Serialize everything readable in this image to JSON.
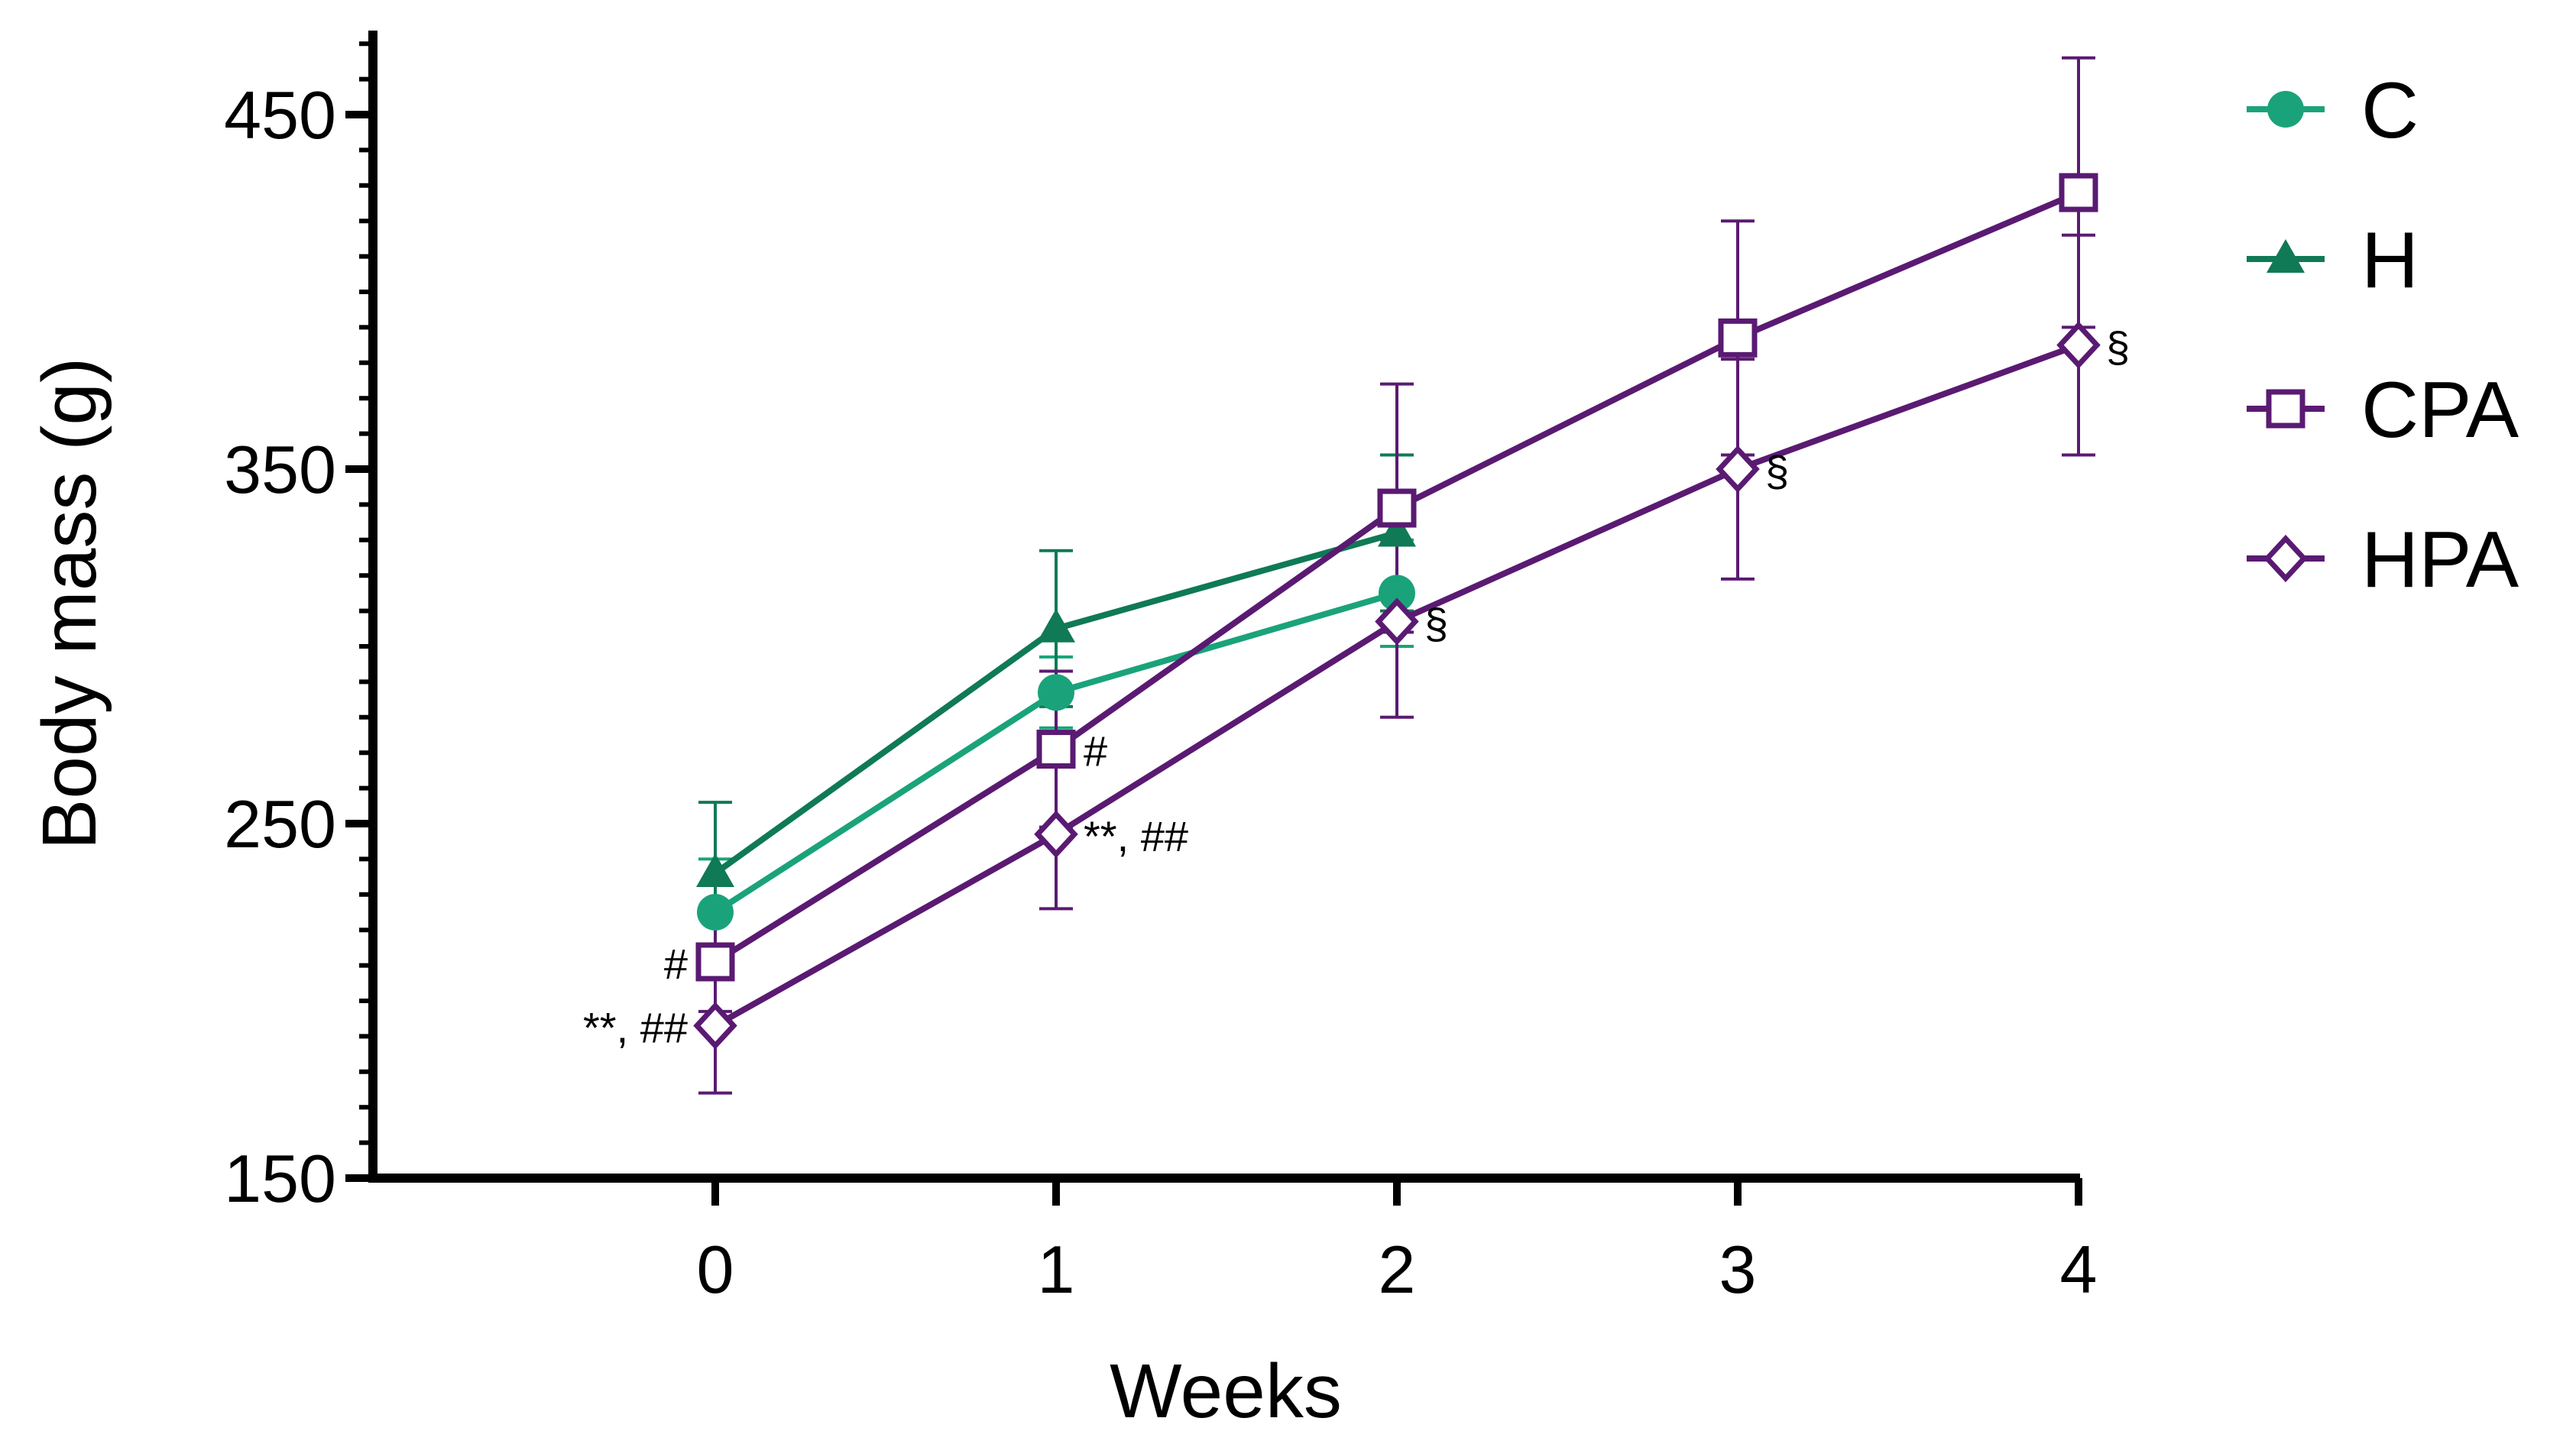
{
  "chart_data": {
    "type": "line",
    "title": "",
    "xlabel": "Weeks",
    "ylabel": "Body mass (g)",
    "x": [
      0,
      1,
      2,
      3,
      4
    ],
    "xlim": [
      -1,
      4
    ],
    "ylim": [
      150,
      470
    ],
    "xticks": [
      "0",
      "1",
      "2",
      "3",
      "4"
    ],
    "yticks": [
      "150",
      "250",
      "350",
      "450"
    ],
    "ytick_values": [
      150,
      250,
      350,
      450
    ],
    "legend_position": "right",
    "series": [
      {
        "name": "C",
        "marker": "filled-circle",
        "color": "#1aa37a",
        "x": [
          0,
          1,
          2
        ],
        "values": [
          225,
          287,
          315
        ],
        "errors": [
          15,
          10,
          15
        ]
      },
      {
        "name": "H",
        "marker": "filled-triangle",
        "color": "#0f7a55",
        "x": [
          0,
          1,
          2
        ],
        "values": [
          236,
          305,
          332
        ],
        "errors": [
          20,
          22,
          22
        ]
      },
      {
        "name": "CPA",
        "marker": "open-square",
        "color": "#5a1a72",
        "x": [
          0,
          1,
          2,
          3,
          4
        ],
        "values": [
          211,
          271,
          339,
          387,
          428
        ],
        "errors": [
          14,
          22,
          35,
          33,
          38
        ]
      },
      {
        "name": "HPA",
        "marker": "open-diamond",
        "color": "#5a1a72",
        "x": [
          0,
          1,
          2,
          3,
          4
        ],
        "values": [
          193,
          247,
          307,
          350,
          385
        ],
        "errors": [
          19,
          21,
          27,
          31,
          31
        ]
      }
    ],
    "annotations": [
      {
        "text": "#",
        "series": "CPA",
        "x": 0,
        "side": "left"
      },
      {
        "text": "**, ##",
        "series": "HPA",
        "x": 0,
        "side": "left"
      },
      {
        "text": "#",
        "series": "CPA",
        "x": 1,
        "side": "right"
      },
      {
        "text": "**, ##",
        "series": "HPA",
        "x": 1,
        "side": "right"
      },
      {
        "text": "§",
        "series": "HPA",
        "x": 2,
        "side": "right"
      },
      {
        "text": "§",
        "series": "HPA",
        "x": 3,
        "side": "right"
      },
      {
        "text": "§",
        "series": "HPA",
        "x": 4,
        "side": "right"
      }
    ]
  }
}
